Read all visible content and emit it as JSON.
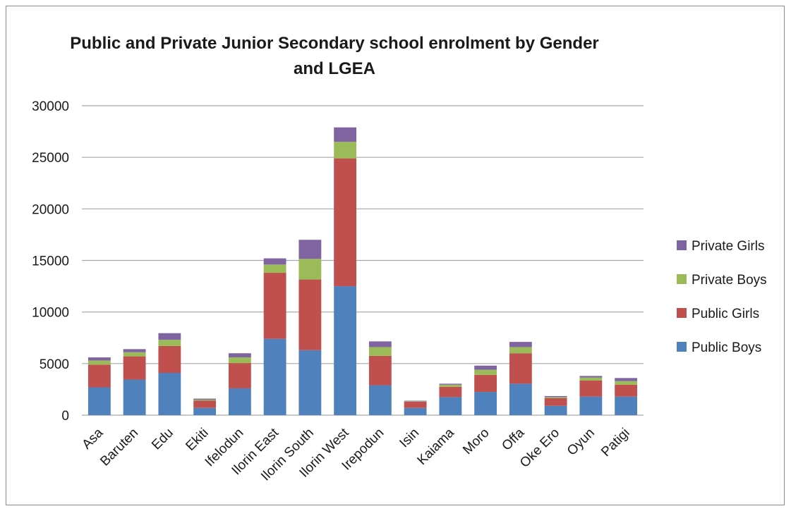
{
  "chart_data": {
    "type": "bar",
    "stacked": true,
    "title": "Public and Private Junior Secondary school enrolment by Gender and LGEA",
    "title_lines": [
      "Public and Private Junior Secondary school enrolment by Gender",
      "and LGEA"
    ],
    "xlabel": "",
    "ylabel": "",
    "ylim": [
      0,
      30000
    ],
    "yticks": [
      0,
      5000,
      10000,
      15000,
      20000,
      25000,
      30000
    ],
    "grid": true,
    "legend_position": "right",
    "categories": [
      "Asa",
      "Baruten",
      "Edu",
      "Ekiti",
      "Ifelodun",
      "Ilorin East",
      "Ilorin South",
      "Ilorin West",
      "Irepodun",
      "Isin",
      "Kaiama",
      "Moro",
      "Offa",
      "Oke Ero",
      "Oyun",
      "Patigi"
    ],
    "series": [
      {
        "name": "Public Boys",
        "color": "#4f81bd",
        "values": [
          2700,
          3450,
          4100,
          700,
          2600,
          7400,
          6300,
          12500,
          2900,
          700,
          1750,
          2250,
          3050,
          900,
          1800,
          1800
        ]
      },
      {
        "name": "Public Girls",
        "color": "#c0504d",
        "values": [
          2200,
          2250,
          2600,
          700,
          2450,
          6400,
          6850,
          12400,
          2850,
          600,
          1000,
          1650,
          2950,
          750,
          1550,
          1150
        ]
      },
      {
        "name": "Private Boys",
        "color": "#9bbb59",
        "values": [
          400,
          400,
          600,
          100,
          550,
          800,
          2000,
          1600,
          850,
          50,
          200,
          500,
          600,
          100,
          300,
          350
        ]
      },
      {
        "name": "Private Girls",
        "color": "#8064a2",
        "values": [
          300,
          300,
          650,
          100,
          400,
          600,
          1850,
          1400,
          550,
          50,
          100,
          400,
          500,
          100,
          150,
          300
        ]
      }
    ]
  }
}
